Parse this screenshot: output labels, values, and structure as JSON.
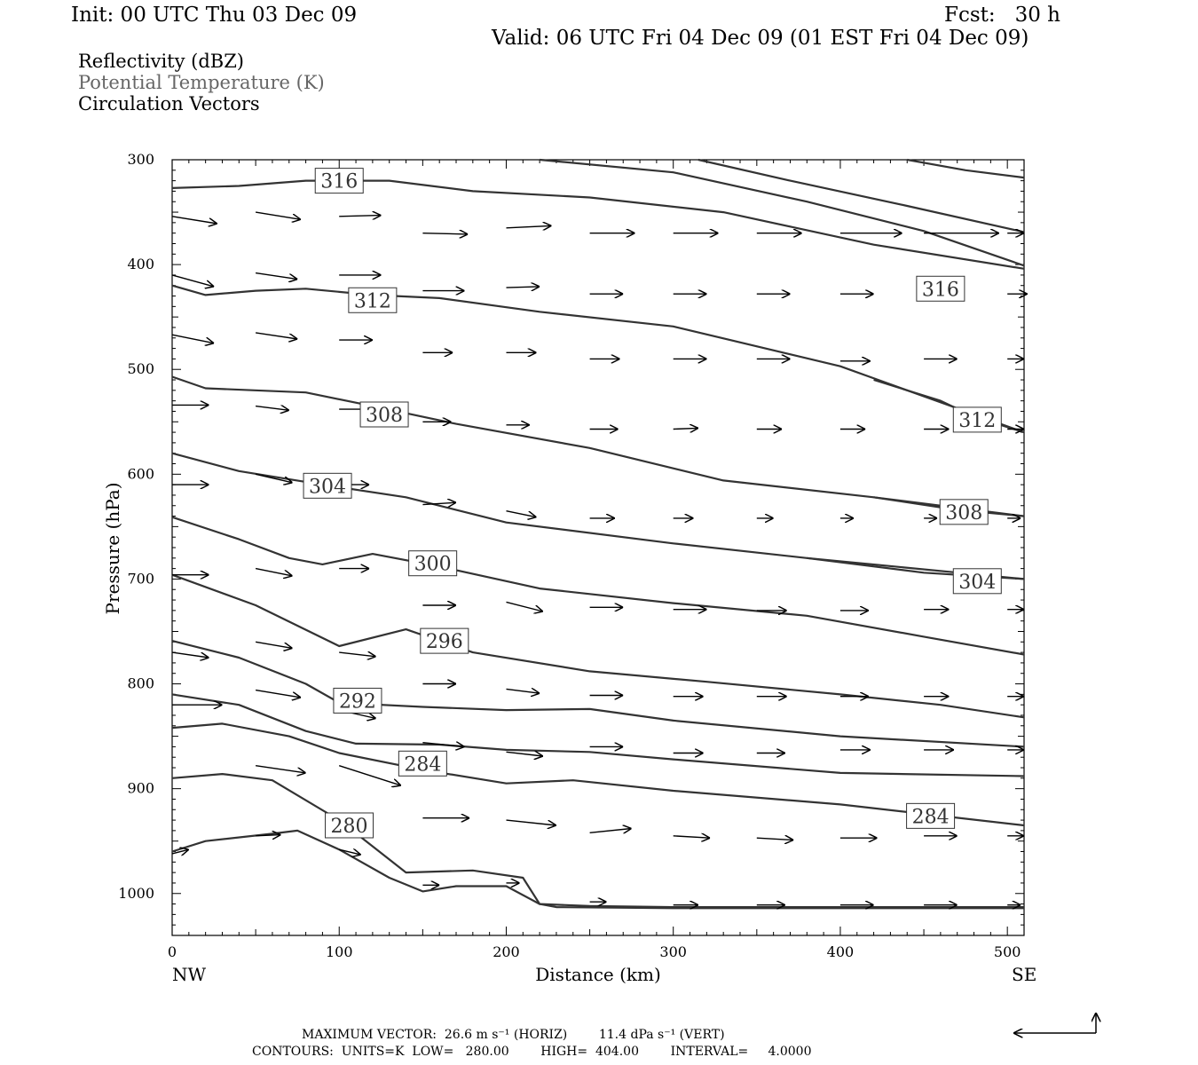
{
  "header": {
    "init": "Init: 00 UTC Thu 03 Dec 09",
    "fcst": "Fcst:   30 h",
    "valid": "Valid: 06 UTC Fri 04 Dec 09 (01 EST Fri 04 Dec 09)"
  },
  "legend": {
    "line1": "Reflectivity (dBZ)",
    "line2": "Potential Temperature (K)",
    "line3": "Circulation Vectors",
    "line2_color": "#666666"
  },
  "footer": {
    "max_vector": "MAXIMUM VECTOR:  26.6 m s⁻¹ (HORIZ)        11.4 dPa s⁻¹ (VERT)",
    "contours": "CONTOURS:  UNITS=K  LOW=   280.00        HIGH=  404.00        INTERVAL=     4.0000"
  },
  "chart_data": {
    "type": "line",
    "xlabel": "Distance (km)",
    "ylabel": "Pressure (hPa)",
    "xlim": [
      0,
      510
    ],
    "ylim": [
      1040,
      300
    ],
    "x_ticks": [
      0,
      100,
      200,
      300,
      400,
      500
    ],
    "y_ticks": [
      300,
      400,
      500,
      600,
      700,
      800,
      900,
      1000
    ],
    "x_end_labels": {
      "left": "NW",
      "right": "SE"
    },
    "contour_color": "#333333",
    "contours": [
      {
        "label": "316",
        "label_at": [
          100,
          320
        ],
        "points": [
          [
            0,
            327
          ],
          [
            40,
            325
          ],
          [
            80,
            320
          ],
          [
            130,
            320
          ],
          [
            180,
            330
          ],
          [
            250,
            336
          ],
          [
            330,
            350
          ],
          [
            420,
            381
          ],
          [
            510,
            404
          ]
        ]
      },
      {
        "label": "316",
        "label_at": [
          460,
          423
        ],
        "points": [
          [
            220,
            300
          ],
          [
            300,
            312
          ],
          [
            380,
            340
          ],
          [
            450,
            368
          ],
          [
            510,
            401
          ]
        ]
      },
      {
        "label": "",
        "label_at": null,
        "points": [
          [
            315,
            300
          ],
          [
            370,
            320
          ],
          [
            440,
            344
          ],
          [
            510,
            369
          ]
        ]
      },
      {
        "label": "",
        "label_at": null,
        "points": [
          [
            440,
            300
          ],
          [
            475,
            310
          ],
          [
            510,
            317
          ]
        ]
      },
      {
        "label": "312",
        "label_at": [
          120,
          434
        ],
        "points": [
          [
            0,
            420
          ],
          [
            20,
            429
          ],
          [
            50,
            425
          ],
          [
            80,
            423
          ],
          [
            120,
            429
          ],
          [
            160,
            432
          ],
          [
            220,
            445
          ],
          [
            300,
            459
          ],
          [
            400,
            497
          ],
          [
            510,
            560
          ]
        ]
      },
      {
        "label": "312",
        "label_at": [
          482,
          548
        ],
        "points": [
          [
            420,
            510
          ],
          [
            460,
            530
          ],
          [
            480,
            545
          ],
          [
            510,
            560
          ]
        ]
      },
      {
        "label": "308",
        "label_at": [
          127,
          543
        ],
        "points": [
          [
            0,
            507
          ],
          [
            20,
            518
          ],
          [
            80,
            522
          ],
          [
            120,
            535
          ],
          [
            170,
            552
          ],
          [
            250,
            575
          ],
          [
            330,
            606
          ],
          [
            420,
            622
          ],
          [
            510,
            640
          ]
        ]
      },
      {
        "label": "308",
        "label_at": [
          474,
          636
        ],
        "points": [
          [
            420,
            622
          ],
          [
            470,
            634
          ],
          [
            510,
            640
          ]
        ]
      },
      {
        "label": "304",
        "label_at": [
          93,
          611
        ],
        "points": [
          [
            0,
            580
          ],
          [
            40,
            597
          ],
          [
            90,
            610
          ],
          [
            140,
            622
          ],
          [
            200,
            646
          ],
          [
            300,
            666
          ],
          [
            380,
            680
          ],
          [
            510,
            700
          ]
        ]
      },
      {
        "label": "304",
        "label_at": [
          482,
          702
        ],
        "points": [
          [
            380,
            680
          ],
          [
            450,
            694
          ],
          [
            510,
            700
          ]
        ]
      },
      {
        "label": "300",
        "label_at": [
          156,
          685
        ],
        "points": [
          [
            0,
            641
          ],
          [
            40,
            662
          ],
          [
            70,
            680
          ],
          [
            90,
            686
          ],
          [
            120,
            676
          ],
          [
            160,
            688
          ],
          [
            220,
            709
          ],
          [
            300,
            723
          ],
          [
            380,
            735
          ],
          [
            450,
            755
          ],
          [
            510,
            772
          ]
        ]
      },
      {
        "label": "296",
        "label_at": [
          163,
          759
        ],
        "points": [
          [
            0,
            696
          ],
          [
            50,
            725
          ],
          [
            100,
            764
          ],
          [
            140,
            748
          ],
          [
            180,
            770
          ],
          [
            250,
            788
          ],
          [
            320,
            798
          ],
          [
            400,
            810
          ],
          [
            460,
            820
          ],
          [
            510,
            832
          ]
        ]
      },
      {
        "label": "292",
        "label_at": [
          111,
          816
        ],
        "points": [
          [
            0,
            759
          ],
          [
            40,
            775
          ],
          [
            80,
            800
          ],
          [
            100,
            818
          ],
          [
            150,
            822
          ],
          [
            200,
            825
          ],
          [
            250,
            824
          ],
          [
            300,
            835
          ],
          [
            400,
            850
          ],
          [
            510,
            860
          ]
        ]
      },
      {
        "label": "284",
        "label_at": [
          150,
          876
        ],
        "points": [
          [
            0,
            810
          ],
          [
            40,
            820
          ],
          [
            80,
            845
          ],
          [
            110,
            857
          ],
          [
            160,
            858
          ],
          [
            200,
            863
          ],
          [
            250,
            865
          ],
          [
            300,
            872
          ],
          [
            400,
            885
          ],
          [
            510,
            888
          ]
        ]
      },
      {
        "label": "284",
        "label_at": [
          454,
          926
        ],
        "points": [
          [
            0,
            842
          ],
          [
            30,
            838
          ],
          [
            70,
            850
          ],
          [
            100,
            866
          ],
          [
            150,
            882
          ],
          [
            200,
            895
          ],
          [
            240,
            892
          ],
          [
            300,
            902
          ],
          [
            400,
            915
          ],
          [
            510,
            935
          ]
        ]
      },
      {
        "label": "280",
        "label_at": [
          106,
          935
        ],
        "points": [
          [
            0,
            890
          ],
          [
            30,
            886
          ],
          [
            60,
            892
          ],
          [
            100,
            930
          ],
          [
            120,
            955
          ],
          [
            140,
            980
          ],
          [
            180,
            978
          ],
          [
            210,
            985
          ],
          [
            220,
            1010
          ],
          [
            250,
            1012
          ],
          [
            300,
            1013
          ],
          [
            510,
            1013
          ]
        ]
      },
      {
        "label": "",
        "label_at": null,
        "points": [
          [
            0,
            960
          ],
          [
            20,
            950
          ],
          [
            60,
            943
          ],
          [
            75,
            940
          ],
          [
            100,
            958
          ],
          [
            130,
            985
          ],
          [
            150,
            998
          ],
          [
            170,
            993
          ],
          [
            200,
            993
          ],
          [
            220,
            1010
          ],
          [
            230,
            1013
          ],
          [
            300,
            1014
          ],
          [
            510,
            1014
          ]
        ]
      }
    ],
    "vectors": {
      "note": "circulation vectors (u in km-equivalent, w in hPa-equivalent display units)",
      "items": [
        [
          0,
          354,
          27,
          7
        ],
        [
          50,
          350,
          27,
          7
        ],
        [
          100,
          354,
          25,
          -1
        ],
        [
          150,
          370,
          27,
          1
        ],
        [
          200,
          365,
          27,
          -2
        ],
        [
          250,
          370,
          27,
          0
        ],
        [
          300,
          370,
          27,
          0
        ],
        [
          350,
          370,
          27,
          0
        ],
        [
          400,
          370,
          37,
          0
        ],
        [
          450,
          370,
          45,
          0
        ],
        [
          500,
          370,
          10,
          0
        ],
        [
          0,
          410,
          25,
          11
        ],
        [
          50,
          408,
          25,
          6
        ],
        [
          100,
          410,
          25,
          0
        ],
        [
          150,
          425,
          25,
          0
        ],
        [
          200,
          422,
          20,
          -1
        ],
        [
          250,
          428,
          20,
          0
        ],
        [
          300,
          428,
          20,
          0
        ],
        [
          350,
          428,
          20,
          0
        ],
        [
          400,
          428,
          20,
          0
        ],
        [
          450,
          428,
          20,
          0
        ],
        [
          500,
          428,
          12,
          0
        ],
        [
          0,
          467,
          25,
          8
        ],
        [
          50,
          465,
          25,
          6
        ],
        [
          100,
          472,
          20,
          0
        ],
        [
          150,
          484,
          18,
          0
        ],
        [
          200,
          484,
          18,
          0
        ],
        [
          250,
          490,
          18,
          0
        ],
        [
          300,
          490,
          20,
          0
        ],
        [
          350,
          490,
          20,
          0
        ],
        [
          400,
          492,
          18,
          0
        ],
        [
          450,
          490,
          20,
          0
        ],
        [
          500,
          490,
          10,
          0
        ],
        [
          0,
          534,
          22,
          0
        ],
        [
          50,
          535,
          20,
          4
        ],
        [
          100,
          538,
          20,
          0
        ],
        [
          150,
          550,
          17,
          0
        ],
        [
          200,
          553,
          14,
          0
        ],
        [
          250,
          557,
          17,
          0
        ],
        [
          300,
          557,
          15,
          -1
        ],
        [
          350,
          557,
          15,
          0
        ],
        [
          400,
          557,
          15,
          0
        ],
        [
          450,
          557,
          15,
          0
        ],
        [
          500,
          557,
          10,
          0
        ],
        [
          0,
          610,
          22,
          0
        ],
        [
          50,
          600,
          22,
          8
        ],
        [
          100,
          610,
          18,
          0
        ],
        [
          150,
          629,
          20,
          -2
        ],
        [
          200,
          635,
          18,
          6
        ],
        [
          250,
          642,
          15,
          0
        ],
        [
          300,
          642,
          12,
          0
        ],
        [
          350,
          642,
          10,
          0
        ],
        [
          400,
          642,
          8,
          0
        ],
        [
          450,
          642,
          8,
          0
        ],
        [
          500,
          642,
          8,
          0
        ],
        [
          0,
          696,
          22,
          0
        ],
        [
          50,
          690,
          22,
          7
        ],
        [
          100,
          690,
          18,
          0
        ],
        [
          150,
          725,
          20,
          0
        ],
        [
          200,
          722,
          22,
          9
        ],
        [
          250,
          727,
          20,
          0
        ],
        [
          300,
          729,
          20,
          0
        ],
        [
          350,
          730,
          18,
          0
        ],
        [
          400,
          730,
          17,
          0
        ],
        [
          450,
          729,
          15,
          0
        ],
        [
          500,
          729,
          10,
          0
        ],
        [
          0,
          770,
          22,
          5
        ],
        [
          50,
          760,
          22,
          6
        ],
        [
          100,
          770,
          22,
          4
        ],
        [
          150,
          800,
          20,
          0
        ],
        [
          200,
          805,
          20,
          4
        ],
        [
          250,
          811,
          20,
          0
        ],
        [
          300,
          812,
          18,
          0
        ],
        [
          350,
          812,
          18,
          0
        ],
        [
          400,
          812,
          17,
          0
        ],
        [
          450,
          812,
          15,
          0
        ],
        [
          500,
          812,
          10,
          0
        ],
        [
          0,
          820,
          30,
          0
        ],
        [
          50,
          806,
          27,
          7
        ],
        [
          100,
          825,
          22,
          8
        ],
        [
          150,
          856,
          25,
          4
        ],
        [
          200,
          865,
          22,
          4
        ],
        [
          250,
          860,
          20,
          0
        ],
        [
          300,
          866,
          18,
          0
        ],
        [
          350,
          866,
          17,
          0
        ],
        [
          400,
          863,
          18,
          0
        ],
        [
          450,
          863,
          18,
          0
        ],
        [
          500,
          863,
          10,
          0
        ],
        [
          50,
          878,
          30,
          7
        ],
        [
          100,
          878,
          37,
          19
        ],
        [
          150,
          928,
          28,
          0
        ],
        [
          200,
          930,
          30,
          5
        ],
        [
          250,
          942,
          25,
          -4
        ],
        [
          300,
          945,
          22,
          2
        ],
        [
          350,
          947,
          22,
          2
        ],
        [
          400,
          947,
          22,
          0
        ],
        [
          450,
          945,
          20,
          0
        ],
        [
          500,
          945,
          10,
          0
        ],
        [
          0,
          962,
          10,
          -4
        ],
        [
          50,
          945,
          15,
          -1
        ],
        [
          100,
          958,
          13,
          5
        ],
        [
          150,
          992,
          10,
          0
        ],
        [
          200,
          990,
          8,
          0
        ],
        [
          250,
          1008,
          10,
          0
        ],
        [
          300,
          1011,
          15,
          0
        ],
        [
          350,
          1011,
          17,
          0
        ],
        [
          400,
          1011,
          20,
          0
        ],
        [
          450,
          1011,
          20,
          0
        ],
        [
          500,
          1011,
          8,
          0
        ]
      ]
    }
  }
}
